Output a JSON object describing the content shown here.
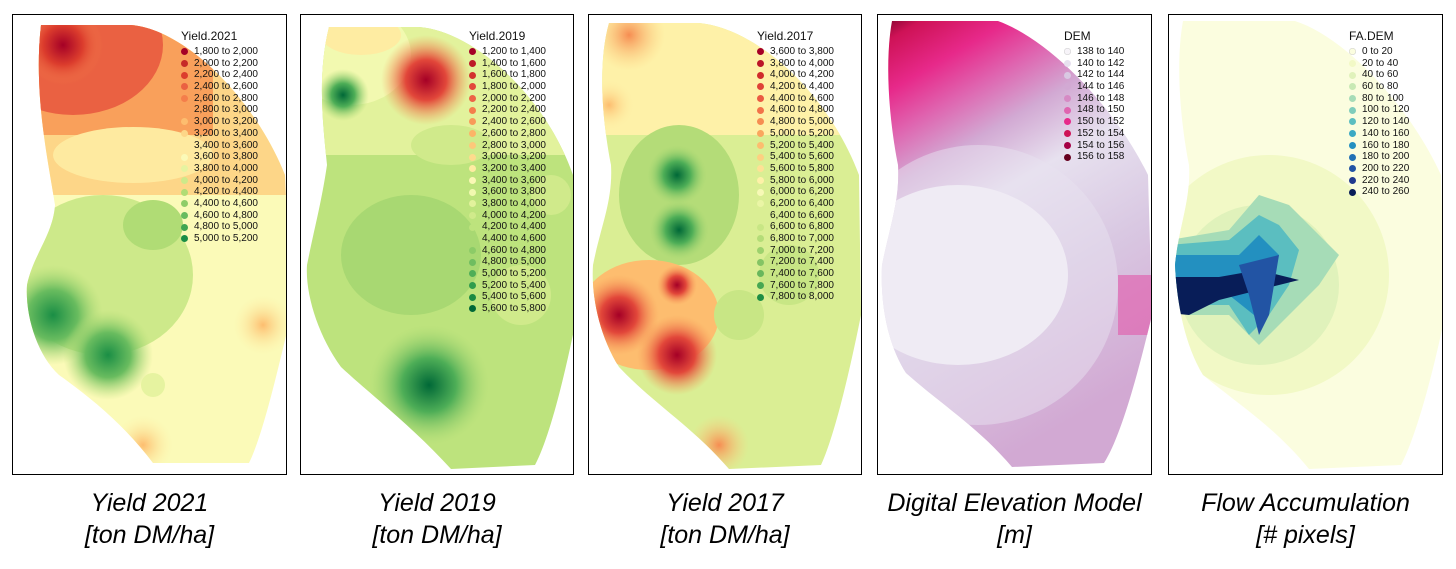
{
  "panels": [
    {
      "legend_title": "Yield.2021",
      "caption_line1": "Yield 2021",
      "caption_line2": "[ton DM/ha]",
      "classes": [
        {
          "label": "1,800 to 2,000",
          "color": "#a50026"
        },
        {
          "label": "2,000 to 2,200",
          "color": "#c62a28"
        },
        {
          "label": "2,200 to 2,400",
          "color": "#dc3d2d"
        },
        {
          "label": "2,400 to 2,600",
          "color": "#ea6142"
        },
        {
          "label": "2,600 to 2,800",
          "color": "#f47e4b"
        },
        {
          "label": "2,800 to 3,000",
          "color": "#f9a05b"
        },
        {
          "label": "3,000 to 3,200",
          "color": "#fdbd6f"
        },
        {
          "label": "3,200 to 3,400",
          "color": "#fdd688"
        },
        {
          "label": "3,400 to 3,600",
          "color": "#feeaa0"
        },
        {
          "label": "3,600 to 3,800",
          "color": "#fbfab8"
        },
        {
          "label": "3,800 to 4,000",
          "color": "#e6f3a0"
        },
        {
          "label": "4,000 to 4,200",
          "color": "#cde98a"
        },
        {
          "label": "4,200 to 4,400",
          "color": "#b0dc75"
        },
        {
          "label": "4,400 to 4,600",
          "color": "#8fcd68"
        },
        {
          "label": "4,600 to 4,800",
          "color": "#69bc5f"
        },
        {
          "label": "4,800 to 5,000",
          "color": "#3fa651"
        },
        {
          "label": "5,000 to 5,200",
          "color": "#1a8e45"
        }
      ]
    },
    {
      "legend_title": "Yield.2019",
      "caption_line1": "Yield 2019",
      "caption_line2": "[ton DM/ha]",
      "classes": [
        {
          "label": "1,200 to 1,400",
          "color": "#a50026"
        },
        {
          "label": "1,400 to 1,600",
          "color": "#bd1a27"
        },
        {
          "label": "1,600 to 1,800",
          "color": "#d3322d"
        },
        {
          "label": "1,800 to 2,000",
          "color": "#e2473a"
        },
        {
          "label": "2,000 to 2,200",
          "color": "#ed6446"
        },
        {
          "label": "2,200 to 2,400",
          "color": "#f47e4b"
        },
        {
          "label": "2,400 to 2,600",
          "color": "#f89a58"
        },
        {
          "label": "2,600 to 2,800",
          "color": "#fcb467"
        },
        {
          "label": "2,800 to 3,000",
          "color": "#fdc87a"
        },
        {
          "label": "3,000 to 3,200",
          "color": "#fedb8d"
        },
        {
          "label": "3,200 to 3,400",
          "color": "#feeca2"
        },
        {
          "label": "3,400 to 3,600",
          "color": "#fbf8b5"
        },
        {
          "label": "3,600 to 3,800",
          "color": "#f2f9b0"
        },
        {
          "label": "3,800 to 4,000",
          "color": "#e2f29c"
        },
        {
          "label": "4,000 to 4,200",
          "color": "#d0ea8b"
        },
        {
          "label": "4,200 to 4,400",
          "color": "#bde37d"
        },
        {
          "label": "4,400 to 4,600",
          "color": "#a8d872"
        },
        {
          "label": "4,600 to 4,800",
          "color": "#8ccb67"
        },
        {
          "label": "4,800 to 5,000",
          "color": "#6fbd60"
        },
        {
          "label": "5,000 to 5,200",
          "color": "#4eae57"
        },
        {
          "label": "5,200 to 5,400",
          "color": "#309c4c"
        },
        {
          "label": "5,400 to 5,600",
          "color": "#198a42"
        },
        {
          "label": "5,600 to 5,800",
          "color": "#006837"
        }
      ]
    },
    {
      "legend_title": "Yield.2017",
      "caption_line1": "Yield 2017",
      "caption_line2": "[ton DM/ha]",
      "classes": [
        {
          "label": "3,600 to 3,800",
          "color": "#a50026"
        },
        {
          "label": "3,800 to 4,000",
          "color": "#bb1527"
        },
        {
          "label": "4,000 to 4,200",
          "color": "#d02c2b"
        },
        {
          "label": "4,200 to 4,400",
          "color": "#df4236"
        },
        {
          "label": "4,400 to 4,600",
          "color": "#ea5a42"
        },
        {
          "label": "4,600 to 4,800",
          "color": "#f27349"
        },
        {
          "label": "4,800 to 5,000",
          "color": "#f68d52"
        },
        {
          "label": "5,000 to 5,200",
          "color": "#faa65e"
        },
        {
          "label": "5,200 to 5,400",
          "color": "#fdbd6f"
        },
        {
          "label": "5,400 to 5,600",
          "color": "#fdd081"
        },
        {
          "label": "5,600 to 5,800",
          "color": "#fee195"
        },
        {
          "label": "5,800 to 6,000",
          "color": "#fef1a8"
        },
        {
          "label": "6,000 to 6,200",
          "color": "#f7f9b6"
        },
        {
          "label": "6,200 to 6,400",
          "color": "#eaf5a5"
        },
        {
          "label": "6,400 to 6,600",
          "color": "#daee94"
        },
        {
          "label": "6,600 to 6,800",
          "color": "#c8e685"
        },
        {
          "label": "6,800 to 7,000",
          "color": "#b4dc78"
        },
        {
          "label": "7,000 to 7,200",
          "color": "#9dd16d"
        },
        {
          "label": "7,200 to 7,400",
          "color": "#84c464"
        },
        {
          "label": "7,400 to 7,600",
          "color": "#68b75c"
        },
        {
          "label": "7,600 to 7,800",
          "color": "#47a752"
        },
        {
          "label": "7,800 to 8,000",
          "color": "#1e8e44"
        }
      ]
    },
    {
      "legend_title": "DEM",
      "caption_line1": "Digital Elevation Model",
      "caption_line2": "[m]",
      "classes": [
        {
          "label": "138 to 140",
          "color": "#f7f4f9"
        },
        {
          "label": "140 to 142",
          "color": "#e7e1ef"
        },
        {
          "label": "142 to 144",
          "color": "#d9c8e2"
        },
        {
          "label": "144 to 146",
          "color": "#d2a9d3"
        },
        {
          "label": "146 to 148",
          "color": "#d68ac4"
        },
        {
          "label": "148 to 150",
          "color": "#df65b0"
        },
        {
          "label": "150 to 152",
          "color": "#e7298a"
        },
        {
          "label": "152 to 154",
          "color": "#ce1256"
        },
        {
          "label": "154 to 156",
          "color": "#a50045"
        },
        {
          "label": "156 to 158",
          "color": "#67001f"
        }
      ]
    },
    {
      "legend_title": "FA.DEM",
      "caption_line1": "Flow Accumulation",
      "caption_line2": "[# pixels]",
      "classes": [
        {
          "label": "0 to 20",
          "color": "#fbfddf"
        },
        {
          "label": "20 to 40",
          "color": "#f2f9c6"
        },
        {
          "label": "40 to 60",
          "color": "#e0f2bb"
        },
        {
          "label": "60 to 80",
          "color": "#c8e9b4"
        },
        {
          "label": "80 to 100",
          "color": "#a6dcb7"
        },
        {
          "label": "100 to 120",
          "color": "#7fcdbb"
        },
        {
          "label": "120 to 140",
          "color": "#5bbec0"
        },
        {
          "label": "140 to 160",
          "color": "#3aa9c3"
        },
        {
          "label": "160 to 180",
          "color": "#2390c0"
        },
        {
          "label": "180 to 200",
          "color": "#2171b5"
        },
        {
          "label": "200 to 220",
          "color": "#2254a4"
        },
        {
          "label": "220 to 240",
          "color": "#213a8f"
        },
        {
          "label": "240 to 260",
          "color": "#081d58"
        }
      ]
    }
  ]
}
